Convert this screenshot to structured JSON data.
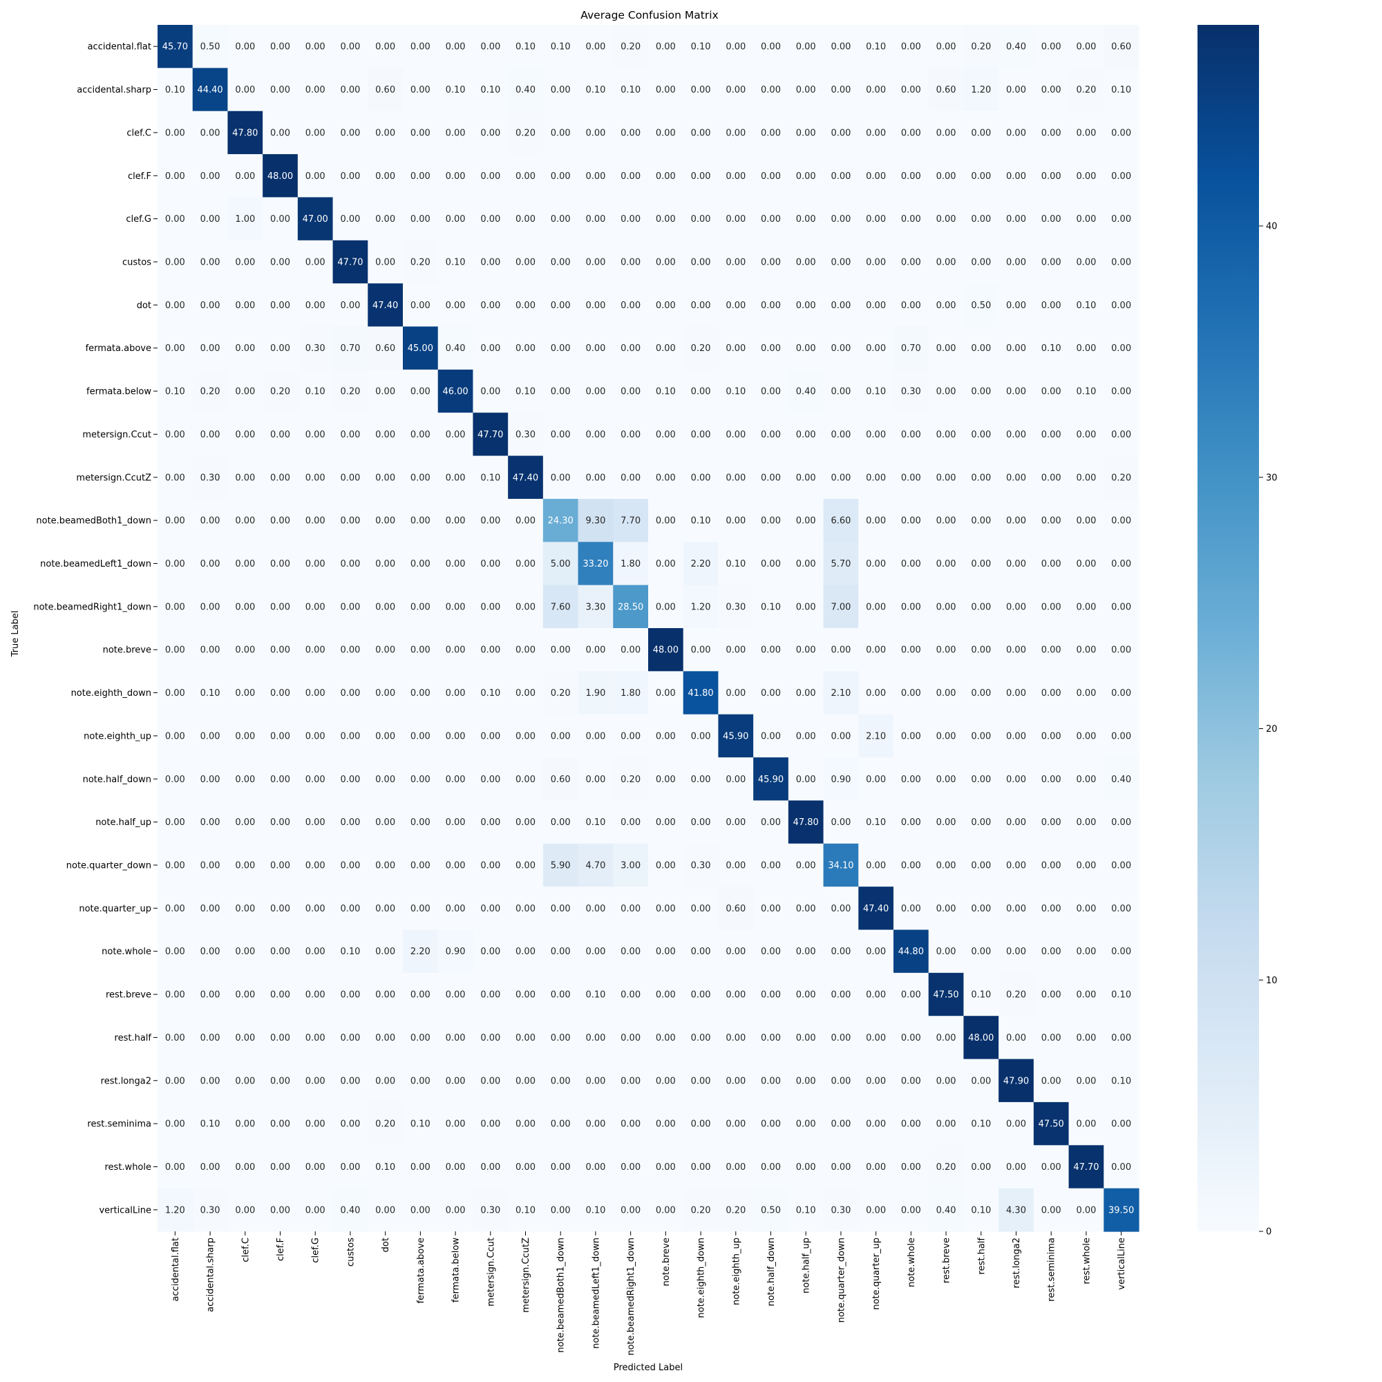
{
  "chart_data": {
    "type": "heatmap",
    "title": "Average Confusion Matrix",
    "xlabel": "Predicted Label",
    "ylabel": "True Label",
    "labels": [
      "accidental.flat",
      "accidental.sharp",
      "clef.C",
      "clef.F",
      "clef.G",
      "custos",
      "dot",
      "fermata.above",
      "fermata.below",
      "metersign.Ccut",
      "metersign.CcutZ",
      "note.beamedBoth1_down",
      "note.beamedLeft1_down",
      "note.beamedRight1_down",
      "note.breve",
      "note.eighth_down",
      "note.eighth_up",
      "note.half_down",
      "note.half_up",
      "note.quarter_down",
      "note.quarter_up",
      "note.whole",
      "rest.breve",
      "rest.half",
      "rest.longa2",
      "rest.seminima",
      "rest.whole",
      "verticalLine"
    ],
    "matrix": [
      [
        45.7,
        0.5,
        0,
        0,
        0,
        0,
        0,
        0,
        0,
        0,
        0.1,
        0.1,
        0,
        0.2,
        0,
        0.1,
        0,
        0,
        0,
        0,
        0.1,
        0,
        0,
        0.2,
        0.4,
        0,
        0,
        0.6
      ],
      [
        0.1,
        44.4,
        0,
        0,
        0,
        0,
        0.6,
        0,
        0.1,
        0.1,
        0.4,
        0,
        0.1,
        0.1,
        0,
        0,
        0,
        0,
        0,
        0,
        0,
        0,
        0.6,
        1.2,
        0,
        0,
        0.2,
        0.1
      ],
      [
        0,
        0,
        47.8,
        0,
        0,
        0,
        0,
        0,
        0,
        0,
        0.2,
        0,
        0,
        0,
        0,
        0,
        0,
        0,
        0,
        0,
        0,
        0,
        0,
        0,
        0,
        0,
        0,
        0
      ],
      [
        0,
        0,
        0,
        48.0,
        0,
        0,
        0,
        0,
        0,
        0,
        0,
        0,
        0,
        0,
        0,
        0,
        0,
        0,
        0,
        0,
        0,
        0,
        0,
        0,
        0,
        0,
        0,
        0
      ],
      [
        0,
        0,
        1.0,
        0,
        47.0,
        0,
        0,
        0,
        0,
        0,
        0,
        0,
        0,
        0,
        0,
        0,
        0,
        0,
        0,
        0,
        0,
        0,
        0,
        0,
        0,
        0,
        0,
        0
      ],
      [
        0,
        0,
        0,
        0,
        0,
        47.7,
        0,
        0.2,
        0.1,
        0,
        0,
        0,
        0,
        0,
        0,
        0,
        0,
        0,
        0,
        0,
        0,
        0,
        0,
        0,
        0,
        0,
        0,
        0
      ],
      [
        0,
        0,
        0,
        0,
        0,
        0,
        47.4,
        0,
        0,
        0,
        0,
        0,
        0,
        0,
        0,
        0,
        0,
        0,
        0,
        0,
        0,
        0,
        0,
        0.5,
        0,
        0,
        0.1,
        0
      ],
      [
        0,
        0,
        0,
        0,
        0.3,
        0.7,
        0.6,
        45.0,
        0.4,
        0,
        0,
        0,
        0,
        0,
        0,
        0.2,
        0,
        0,
        0,
        0,
        0,
        0.7,
        0,
        0,
        0,
        0.1,
        0,
        0
      ],
      [
        0.1,
        0.2,
        0,
        0.2,
        0.1,
        0.2,
        0,
        0,
        46.0,
        0,
        0.1,
        0,
        0,
        0,
        0.1,
        0,
        0.1,
        0,
        0.4,
        0,
        0.1,
        0.3,
        0,
        0,
        0,
        0,
        0.1,
        0
      ],
      [
        0,
        0,
        0,
        0,
        0,
        0,
        0,
        0,
        0,
        47.7,
        0.3,
        0,
        0,
        0,
        0,
        0,
        0,
        0,
        0,
        0,
        0,
        0,
        0,
        0,
        0,
        0,
        0,
        0
      ],
      [
        0,
        0.3,
        0,
        0,
        0,
        0,
        0,
        0,
        0,
        0.1,
        47.4,
        0,
        0,
        0,
        0,
        0,
        0,
        0,
        0,
        0,
        0,
        0,
        0,
        0,
        0,
        0,
        0,
        0.2
      ],
      [
        0,
        0,
        0,
        0,
        0,
        0,
        0,
        0,
        0,
        0,
        0,
        24.3,
        9.3,
        7.7,
        0,
        0.1,
        0,
        0,
        0,
        6.6,
        0,
        0,
        0,
        0,
        0,
        0,
        0,
        0
      ],
      [
        0,
        0,
        0,
        0,
        0,
        0,
        0,
        0,
        0,
        0,
        0,
        5.0,
        33.2,
        1.8,
        0,
        2.2,
        0.1,
        0,
        0,
        5.7,
        0,
        0,
        0,
        0,
        0,
        0,
        0,
        0
      ],
      [
        0,
        0,
        0,
        0,
        0,
        0,
        0,
        0,
        0,
        0,
        0,
        7.6,
        3.3,
        28.5,
        0,
        1.2,
        0.3,
        0.1,
        0,
        7.0,
        0,
        0,
        0,
        0,
        0,
        0,
        0,
        0
      ],
      [
        0,
        0,
        0,
        0,
        0,
        0,
        0,
        0,
        0,
        0,
        0,
        0,
        0,
        0,
        48.0,
        0,
        0,
        0,
        0,
        0,
        0,
        0,
        0,
        0,
        0,
        0,
        0,
        0
      ],
      [
        0,
        0.1,
        0,
        0,
        0,
        0,
        0,
        0,
        0,
        0.1,
        0,
        0.2,
        1.9,
        1.8,
        0,
        41.8,
        0,
        0,
        0,
        2.1,
        0,
        0,
        0,
        0,
        0,
        0,
        0,
        0
      ],
      [
        0,
        0,
        0,
        0,
        0,
        0,
        0,
        0,
        0,
        0,
        0,
        0,
        0,
        0,
        0,
        0,
        45.9,
        0,
        0,
        0,
        2.1,
        0,
        0,
        0,
        0,
        0,
        0,
        0
      ],
      [
        0,
        0,
        0,
        0,
        0,
        0,
        0,
        0,
        0,
        0,
        0,
        0.6,
        0,
        0.2,
        0,
        0,
        0,
        45.9,
        0,
        0.9,
        0,
        0,
        0,
        0,
        0,
        0,
        0,
        0.4
      ],
      [
        0,
        0,
        0,
        0,
        0,
        0,
        0,
        0,
        0,
        0,
        0,
        0,
        0.1,
        0,
        0,
        0,
        0,
        0,
        47.8,
        0,
        0.1,
        0,
        0,
        0,
        0,
        0,
        0,
        0
      ],
      [
        0,
        0,
        0,
        0,
        0,
        0,
        0,
        0,
        0,
        0,
        0,
        5.9,
        4.7,
        3.0,
        0,
        0.3,
        0,
        0,
        0,
        34.1,
        0,
        0,
        0,
        0,
        0,
        0,
        0,
        0
      ],
      [
        0,
        0,
        0,
        0,
        0,
        0,
        0,
        0,
        0,
        0,
        0,
        0,
        0,
        0,
        0,
        0,
        0.6,
        0,
        0,
        0,
        47.4,
        0,
        0,
        0,
        0,
        0,
        0,
        0
      ],
      [
        0,
        0,
        0,
        0,
        0,
        0.1,
        0,
        2.2,
        0.9,
        0,
        0,
        0,
        0,
        0,
        0,
        0,
        0,
        0,
        0,
        0,
        0,
        44.8,
        0,
        0,
        0,
        0,
        0,
        0
      ],
      [
        0,
        0,
        0,
        0,
        0,
        0,
        0,
        0,
        0,
        0,
        0,
        0,
        0.1,
        0,
        0,
        0,
        0,
        0,
        0,
        0,
        0,
        0,
        47.5,
        0.1,
        0.2,
        0,
        0,
        0.1
      ],
      [
        0,
        0,
        0,
        0,
        0,
        0,
        0,
        0,
        0,
        0,
        0,
        0,
        0,
        0,
        0,
        0,
        0,
        0,
        0,
        0,
        0,
        0,
        0,
        48.0,
        0,
        0,
        0,
        0
      ],
      [
        0,
        0,
        0,
        0,
        0,
        0,
        0,
        0,
        0,
        0,
        0,
        0,
        0,
        0,
        0,
        0,
        0,
        0,
        0,
        0,
        0,
        0,
        0,
        0,
        47.9,
        0,
        0,
        0.1
      ],
      [
        0,
        0.1,
        0,
        0,
        0,
        0,
        0.2,
        0.1,
        0,
        0,
        0,
        0,
        0,
        0,
        0,
        0,
        0,
        0,
        0,
        0,
        0,
        0,
        0,
        0.1,
        0,
        47.5,
        0,
        0
      ],
      [
        0,
        0,
        0,
        0,
        0,
        0,
        0.1,
        0,
        0,
        0,
        0,
        0,
        0,
        0,
        0,
        0,
        0,
        0,
        0,
        0,
        0,
        0,
        0.2,
        0,
        0,
        0,
        47.7,
        0
      ],
      [
        1.2,
        0.3,
        0,
        0,
        0,
        0.4,
        0,
        0,
        0,
        0.3,
        0.1,
        0,
        0.1,
        0,
        0,
        0.2,
        0.2,
        0.5,
        0.1,
        0.3,
        0,
        0,
        0.4,
        0.1,
        4.3,
        0,
        0,
        39.5
      ]
    ],
    "value_format": "2 decimals",
    "colormap": "Blues",
    "colorbar": {
      "min": 0,
      "max": 48,
      "ticks": [
        0,
        10,
        20,
        30,
        40
      ]
    }
  }
}
